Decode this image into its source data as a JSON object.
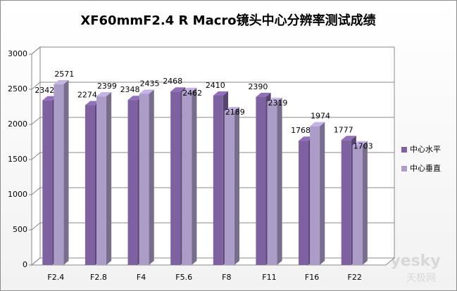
{
  "chart_data": {
    "type": "bar3d",
    "title": "XF60mmF2.4 R Macro镜头中心分辨率测试成绩",
    "categories": [
      "F2.4",
      "F2.8",
      "F4",
      "F5.6",
      "F8",
      "F11",
      "F16",
      "F22"
    ],
    "series": [
      {
        "name": "中心水平",
        "color": "#7e61a1",
        "values": [
          2342,
          2274,
          2348,
          2468,
          2410,
          2390,
          1768,
          1777
        ]
      },
      {
        "name": "中心垂直",
        "color": "#ab9cc8",
        "values": [
          2571,
          2399,
          2435,
          2462,
          2189,
          2319,
          1974,
          1703
        ]
      }
    ],
    "ylim": [
      0,
      3000
    ],
    "yticks": [
      0,
      500,
      1000,
      1500,
      2000,
      2500,
      3000
    ],
    "grid": true,
    "legend": "right",
    "watermark": [
      "yesky",
      "天极网"
    ]
  }
}
